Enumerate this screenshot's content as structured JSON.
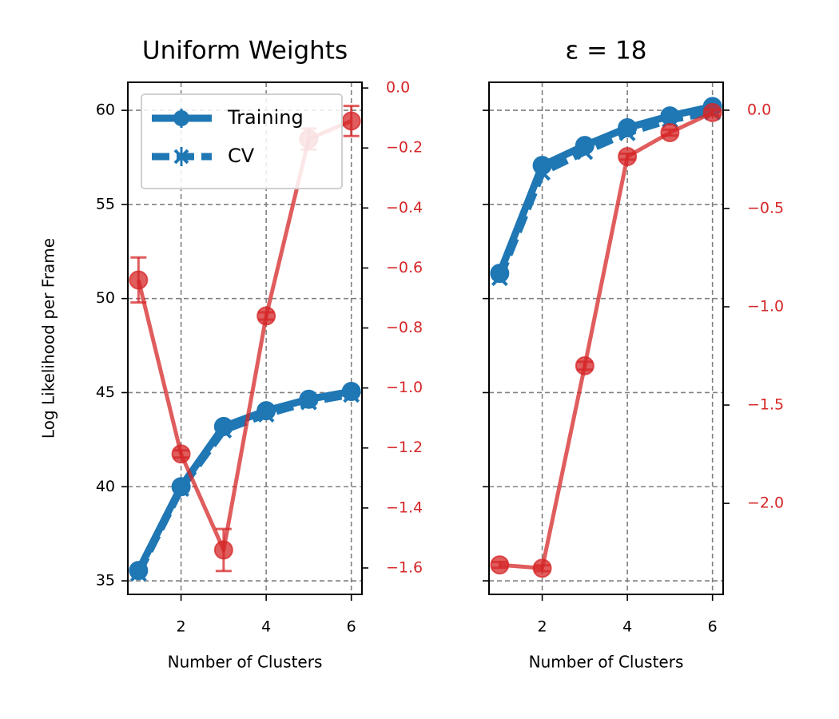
{
  "chart_data": [
    {
      "type": "line",
      "title": "Uniform Weights",
      "xlabel": "Number of Clusters",
      "ylabel": "Log Likelihood per Frame",
      "x": [
        1,
        2,
        3,
        4,
        5,
        6
      ],
      "xlim": [
        0.75,
        6.25
      ],
      "xticks": [
        2,
        4,
        6
      ],
      "ylim": [
        34.28,
        61.49
      ],
      "yticks": [
        35,
        40,
        45,
        50,
        55,
        60
      ],
      "ytick_labels": true,
      "y2lim": [
        -1.688,
        0.019
      ],
      "y2ticks": [
        {
          "value": 0,
          "label": "0.0"
        },
        {
          "value": -0.2,
          "label": "−0.2"
        },
        {
          "value": -0.4,
          "label": "−0.4"
        },
        {
          "value": -0.6,
          "label": "−0.6"
        },
        {
          "value": -0.8,
          "label": "−0.8"
        },
        {
          "value": -1.0,
          "label": "−1.0"
        },
        {
          "value": -1.2,
          "label": "−1.2"
        },
        {
          "value": -1.4,
          "label": "−1.4"
        },
        {
          "value": -1.6,
          "label": "−1.6"
        }
      ],
      "y2_color": "#d62728",
      "grid": true,
      "legend": "upper left",
      "series": [
        {
          "name": "Training",
          "color": "#1f77b4",
          "marker": "o",
          "linestyle": "solid",
          "values": [
            35.55,
            40.0,
            43.2,
            44.04,
            44.65,
            45.06
          ]
        },
        {
          "name": "CV",
          "color": "#1f77b4",
          "marker": "x",
          "linestyle": "dashed",
          "values": [
            35.4,
            39.9,
            43.0,
            43.85,
            44.5,
            44.9
          ]
        },
        {
          "color": "#d62728",
          "marker": "o",
          "linestyle": "solid",
          "axis": "y2",
          "values": [
            -0.64,
            -1.22,
            -1.54,
            -0.76,
            -0.17,
            -0.11
          ],
          "errors": [
            0.075,
            0.012,
            0.07,
            0.012,
            0.035,
            0.05
          ]
        }
      ]
    },
    {
      "type": "line",
      "title": "ε = 18",
      "xlabel": "Number of Clusters",
      "x": [
        1,
        2,
        3,
        4,
        5,
        6
      ],
      "xlim": [
        0.75,
        6.25
      ],
      "xticks": [
        2,
        4,
        6
      ],
      "ylim": [
        34.28,
        61.49
      ],
      "yticks": [
        35,
        40,
        45,
        50,
        55,
        60
      ],
      "ytick_labels": false,
      "y2lim": [
        -2.463,
        0.142
      ],
      "y2ticks": [
        {
          "value": 0,
          "label": "0.0"
        },
        {
          "value": -0.5,
          "label": "−0.5"
        },
        {
          "value": -1.0,
          "label": "−1.0"
        },
        {
          "value": -1.5,
          "label": "−1.5"
        },
        {
          "value": -2.0,
          "label": "−2.0"
        }
      ],
      "y2_color": "#d62728",
      "grid": true,
      "series": [
        {
          "color": "#1f77b4",
          "marker": "o",
          "linestyle": "solid",
          "values": [
            51.34,
            57.07,
            58.13,
            59.07,
            59.7,
            60.2
          ]
        },
        {
          "color": "#1f77b4",
          "marker": "x",
          "linestyle": "dashed",
          "values": [
            51.1,
            56.7,
            57.8,
            58.8,
            59.5,
            59.9
          ]
        },
        {
          "color": "#d62728",
          "marker": "o",
          "linestyle": "solid",
          "axis": "y2",
          "values": [
            -2.313,
            -2.33,
            -1.3,
            -0.236,
            -0.114,
            -0.012
          ],
          "errors": [
            0.015,
            0.015,
            0.02,
            0.015,
            0.015,
            0.015
          ]
        }
      ]
    }
  ]
}
